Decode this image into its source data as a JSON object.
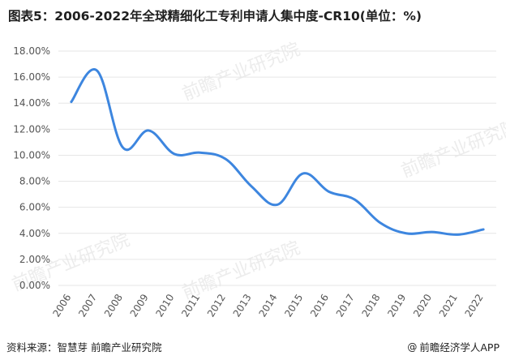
{
  "title": "图表5：2006-2022年全球精细化工专利申请人集中度-CR10(单位：%)",
  "source": "资料来源：智慧芽 前瞻产业研究院",
  "brand": "前瞻经济学人APP",
  "brand_icon": "at-icon",
  "watermark": "前瞻产业研究院",
  "colors": {
    "line": "#3d86df",
    "grid": "#e6e6e6",
    "axis_text": "#555555"
  },
  "chart_data": {
    "type": "line",
    "categories": [
      "2006",
      "2007",
      "2008",
      "2009",
      "2010",
      "2011",
      "2012",
      "2013",
      "2014",
      "2015",
      "2016",
      "2017",
      "2018",
      "2019",
      "2020",
      "2021",
      "2022"
    ],
    "values": [
      14.1,
      16.5,
      10.6,
      11.9,
      10.1,
      10.2,
      9.7,
      7.6,
      6.2,
      8.6,
      7.2,
      6.6,
      4.8,
      4.0,
      4.1,
      3.9,
      4.3
    ],
    "yticks": [
      "0.00%",
      "2.00%",
      "4.00%",
      "6.00%",
      "8.00%",
      "10.00%",
      "12.00%",
      "14.00%",
      "16.00%",
      "18.00%"
    ],
    "ylim": [
      0,
      18
    ],
    "xlabel": "",
    "ylabel": "",
    "grid": true,
    "smooth": true
  }
}
